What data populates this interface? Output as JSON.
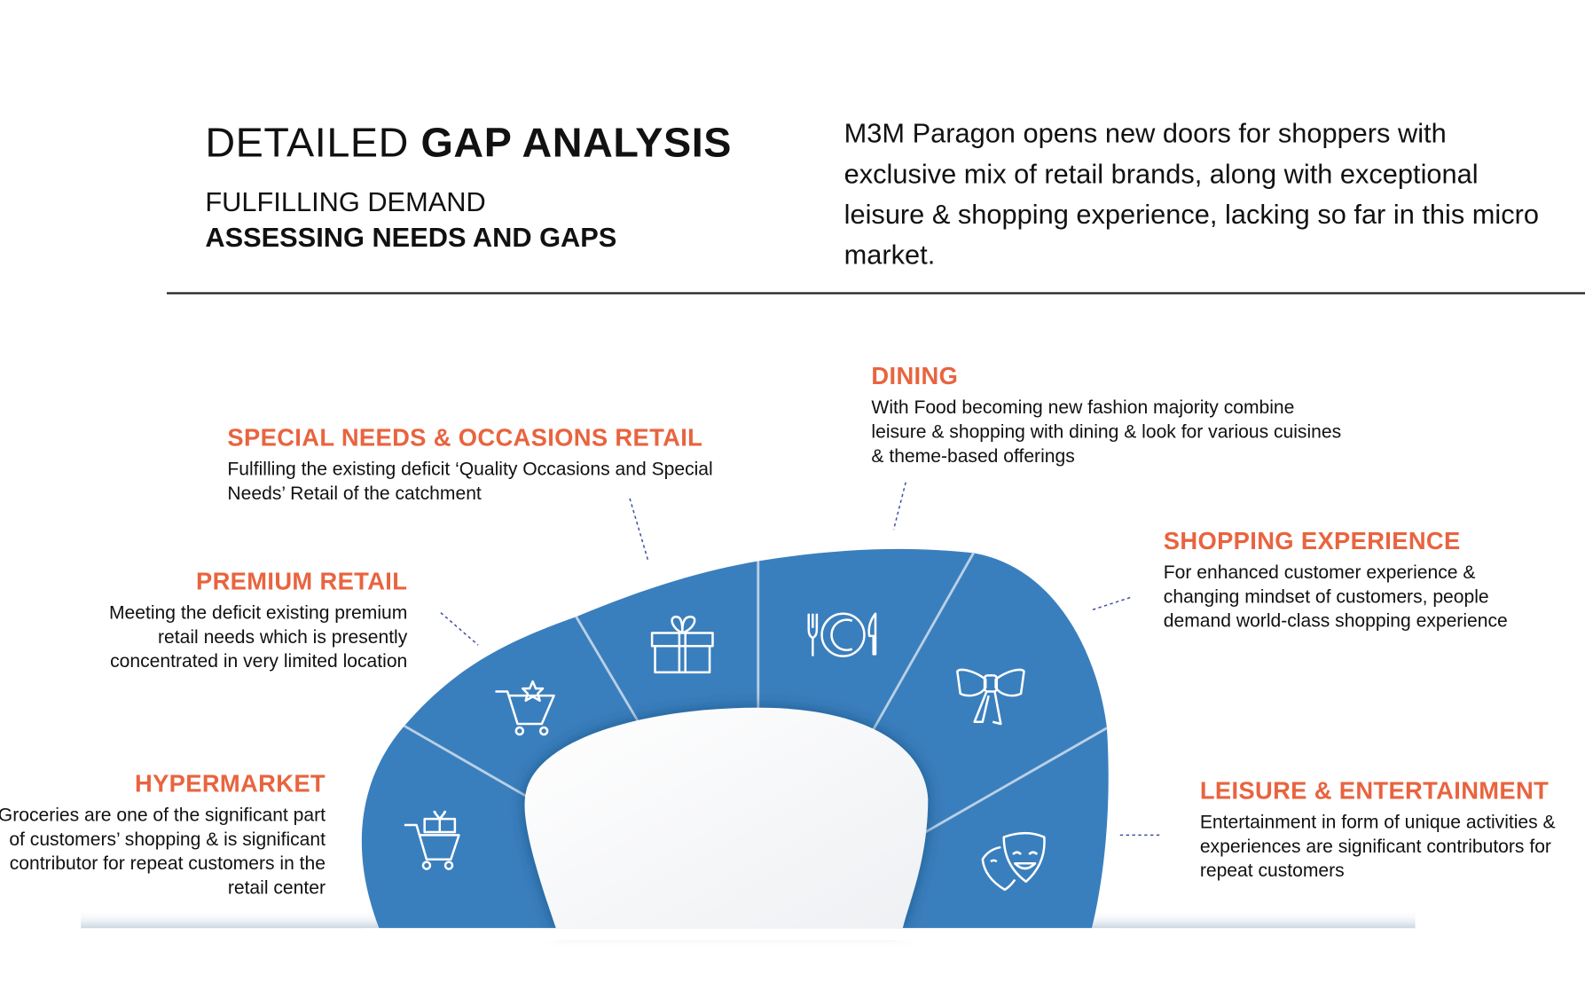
{
  "header": {
    "title_light": "DETAILED ",
    "title_bold": "GAP ANALYSIS",
    "subtitle_1": "FULFILLING DEMAND",
    "subtitle_2": "ASSESSING NEEDS AND GAPS",
    "intro": "M3M Paragon opens new doors for shoppers with exclusive mix of retail brands, along with exceptional leisure & shopping experience, lacking so far in this micro market."
  },
  "colors": {
    "accent": "#e8643f",
    "segment_blue": "#3a7fbd",
    "text": "#111111"
  },
  "segments": [
    {
      "heading": "HYPERMARKET",
      "body": "Groceries are one of the significant part of customers’ shopping & is significant contributor for repeat customers in the retail center",
      "icon": "cart-gift-icon"
    },
    {
      "heading": "PREMIUM RETAIL",
      "body": "Meeting the deficit existing premium retail needs which is presently concentrated in very limited location",
      "icon": "cart-star-icon"
    },
    {
      "heading": "SPECIAL NEEDS & OCCASIONS RETAIL",
      "body": "Fulfilling the existing deficit ‘Quality Occasions and Special Needs’ Retail of the catchment",
      "icon": "gift-box-icon"
    },
    {
      "heading": "DINING",
      "body": "With Food becoming new fashion majority combine leisure & shopping with dining & look for various cuisines & theme-based offerings",
      "icon": "plate-cutlery-icon"
    },
    {
      "heading": "SHOPPING EXPERIENCE",
      "body": "For enhanced customer experience & changing mindset of customers, people demand world-class shopping experience",
      "icon": "bow-ribbon-icon"
    },
    {
      "heading": "LEISURE & ENTERTAINMENT",
      "body": "Entertainment in form of unique activities & experiences are significant contributors for repeat customers",
      "icon": "theatre-masks-icon"
    }
  ]
}
